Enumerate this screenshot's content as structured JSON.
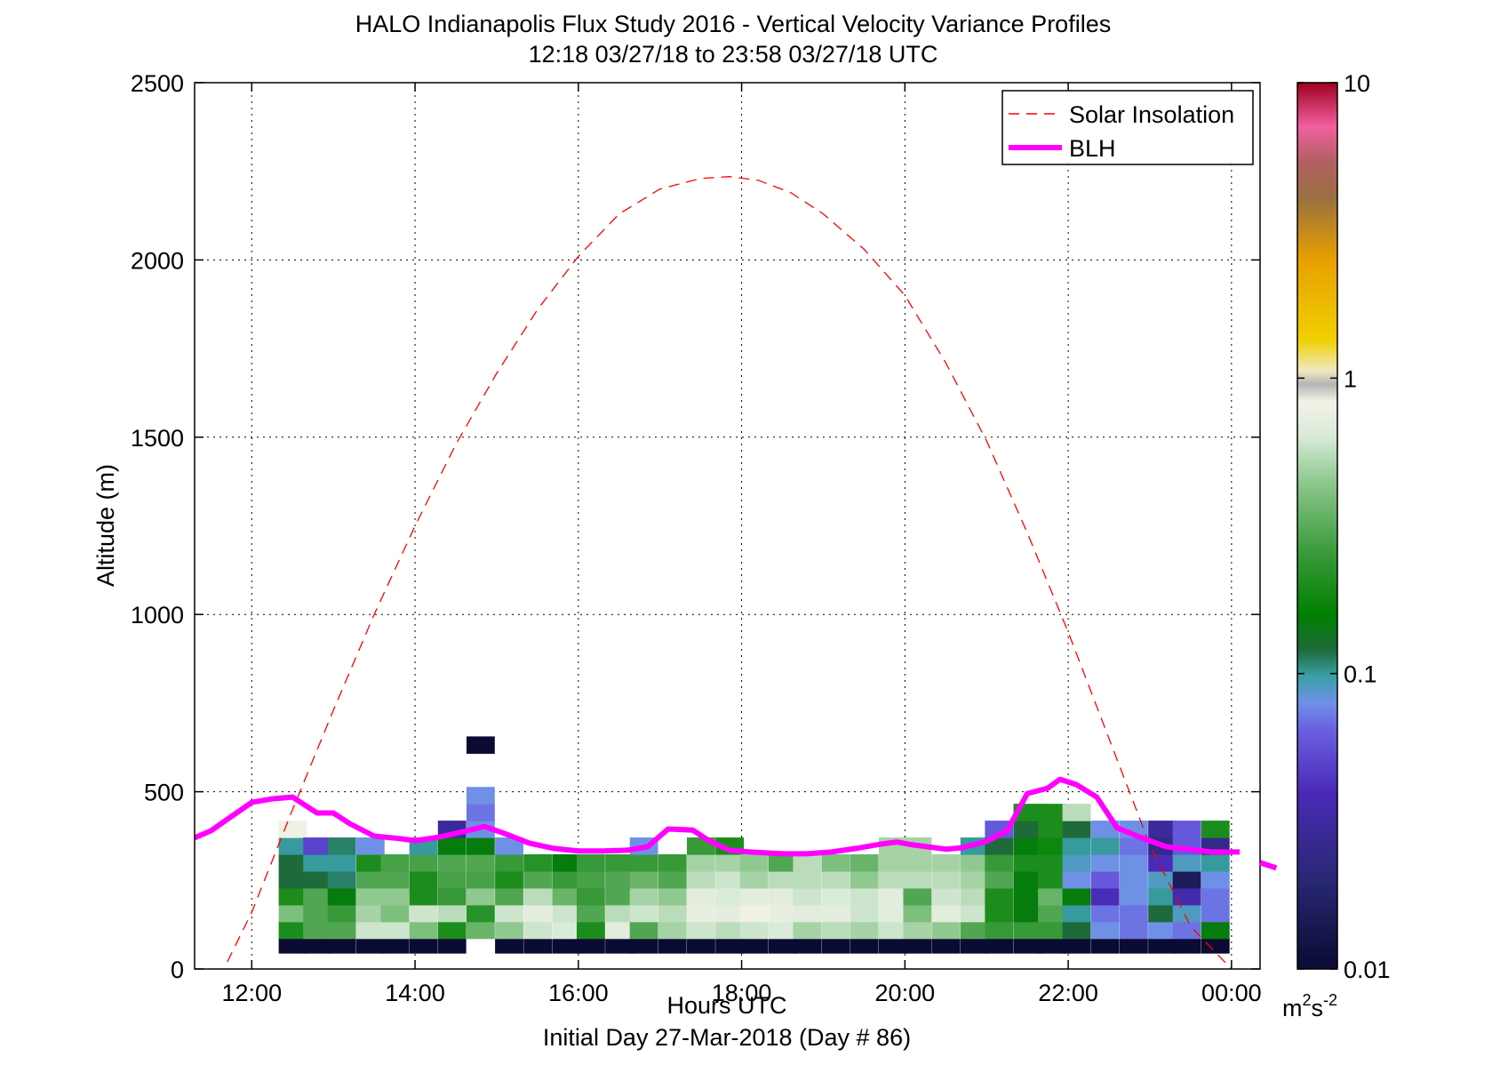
{
  "chart_data": {
    "type": "heatmap",
    "title": "HALO Indianapolis Flux Study 2016 - Vertical Velocity Variance Profiles",
    "subtitle": "12:18 03/27/18 to 23:58 03/27/18  UTC",
    "xlabel": "Hours UTC",
    "xlabel2": "Initial Day 27-Mar-2018 (Day # 86)",
    "ylabel": "Altitude (m)",
    "xlim": [
      11.3,
      24.35
    ],
    "ylim": [
      0,
      2500
    ],
    "x_ticks": [
      12,
      14,
      16,
      18,
      20,
      22,
      24
    ],
    "x_tick_labels": [
      "12:00",
      "14:00",
      "16:00",
      "18:00",
      "20:00",
      "22:00",
      "00:00"
    ],
    "y_ticks": [
      0,
      500,
      1000,
      1500,
      2000,
      2500
    ],
    "y_tick_labels": [
      "0",
      "500",
      "1000",
      "1500",
      "2000",
      "2500"
    ],
    "grid": true,
    "legend_position": "top-right",
    "legend": [
      "Solar Insolation",
      "BLH"
    ],
    "colorbar": {
      "scale": "log",
      "range": [
        0.01,
        10
      ],
      "tick_values": [
        0.01,
        0.1,
        1,
        10
      ],
      "tick_labels": [
        "0.01",
        "0.1",
        "1",
        "10"
      ],
      "unit_base": "m",
      "unit_sup1": "2",
      "unit_mid": "s",
      "unit_sup2": "-2",
      "stops": [
        [
          0.0,
          "#0a0a33"
        ],
        [
          0.1,
          "#282873"
        ],
        [
          0.2,
          "#4a2ab8"
        ],
        [
          0.27,
          "#6a60e0"
        ],
        [
          0.3,
          "#7090e8"
        ],
        [
          0.33,
          "#3aa0a8"
        ],
        [
          0.36,
          "#1e6a3a"
        ],
        [
          0.4,
          "#008000"
        ],
        [
          0.47,
          "#3a9a3a"
        ],
        [
          0.55,
          "#8ec88e"
        ],
        [
          0.6,
          "#d8ead8"
        ],
        [
          0.64,
          "#f2f2e6"
        ],
        [
          0.66,
          "#b4b4b4"
        ],
        [
          0.675,
          "#f0e8c0"
        ],
        [
          0.71,
          "#f0d000"
        ],
        [
          0.8,
          "#e8a000"
        ],
        [
          0.87,
          "#9a7040"
        ],
        [
          0.91,
          "#b06060"
        ],
        [
          0.95,
          "#f060a0"
        ],
        [
          1.0,
          "#a00020"
        ]
      ]
    },
    "series": [
      {
        "name": "Solar Insolation",
        "color": "#ff0000",
        "style": "dashed",
        "x": [
          11.7,
          12.0,
          12.5,
          13.0,
          13.5,
          14.0,
          14.5,
          15.0,
          15.5,
          16.0,
          16.5,
          17.0,
          17.5,
          17.85,
          18.2,
          18.6,
          19.0,
          19.5,
          20.0,
          20.5,
          21.0,
          21.5,
          22.0,
          22.5,
          23.0,
          23.5,
          24.0
        ],
        "y": [
          20,
          160,
          450,
          730,
          1000,
          1250,
          1480,
          1680,
          1860,
          2010,
          2130,
          2200,
          2230,
          2235,
          2225,
          2190,
          2130,
          2030,
          1900,
          1710,
          1490,
          1230,
          950,
          650,
          350,
          120,
          0
        ]
      },
      {
        "name": "BLH",
        "color": "#ff00ff",
        "style": "solid",
        "x": [
          11.3,
          11.5,
          11.75,
          12.0,
          12.25,
          12.5,
          12.8,
          13.0,
          13.2,
          13.5,
          13.8,
          14.0,
          14.3,
          14.6,
          14.85,
          15.1,
          15.4,
          15.7,
          16.0,
          16.3,
          16.6,
          16.85,
          17.1,
          17.4,
          17.6,
          17.85,
          18.1,
          18.5,
          18.8,
          19.1,
          19.4,
          19.7,
          19.9,
          20.1,
          20.5,
          20.7,
          21.0,
          21.25,
          21.5,
          21.75,
          21.9,
          22.1,
          22.35,
          22.6,
          22.9,
          23.2,
          23.5,
          23.75,
          24.0,
          24.1
        ],
        "y": [
          370,
          390,
          430,
          470,
          480,
          485,
          440,
          440,
          410,
          375,
          368,
          362,
          372,
          388,
          402,
          382,
          355,
          340,
          333,
          333,
          335,
          345,
          395,
          392,
          362,
          335,
          330,
          325,
          325,
          330,
          340,
          352,
          358,
          350,
          338,
          342,
          360,
          390,
          495,
          510,
          535,
          520,
          485,
          398,
          370,
          345,
          337,
          330,
          330,
          330
        ]
      }
    ],
    "extra_segment": {
      "x": [
        24.35,
        24.55
      ],
      "y": [
        300,
        285
      ]
    },
    "cells": [
      {
        "x": 12.5,
        "vals": [
          0.01,
          0.2,
          0.4,
          0.2,
          0.12,
          0.12,
          0.1,
          0.8
        ]
      },
      {
        "x": 12.8,
        "vals": [
          0.01,
          0.3,
          0.3,
          0.3,
          0.12,
          0.1,
          0.05
        ]
      },
      {
        "x": 13.1,
        "vals": [
          0.01,
          0.3,
          0.25,
          0.15,
          0.11,
          0.1,
          0.11
        ]
      },
      {
        "x": 13.45,
        "vals": [
          0.01,
          0.6,
          0.5,
          0.45,
          0.3,
          0.2,
          0.08
        ]
      },
      {
        "x": 13.75,
        "vals": [
          0.01,
          0.6,
          0.4,
          0.45,
          0.3,
          0.28
        ]
      },
      {
        "x": 14.1,
        "vals": [
          0.01,
          0.4,
          0.6,
          0.2,
          0.2,
          0.28,
          0.1
        ]
      },
      {
        "x": 14.45,
        "vals": [
          0.01,
          0.2,
          0.55,
          0.25,
          0.28,
          0.3,
          0.15,
          0.03
        ]
      },
      {
        "x": 14.8,
        "vals": [
          null,
          0.35,
          0.22,
          0.45,
          0.28,
          0.3,
          0.15,
          0.08,
          0.07,
          0.08,
          null,
          null,
          0.01
        ]
      },
      {
        "x": 15.15,
        "vals": [
          0.01,
          0.45,
          0.6,
          0.3,
          0.2,
          0.25,
          0.08
        ]
      },
      {
        "x": 15.5,
        "vals": [
          0.01,
          0.6,
          0.7,
          0.55,
          0.3,
          0.22
        ]
      },
      {
        "x": 15.85,
        "vals": [
          0.01,
          0.65,
          0.6,
          0.35,
          0.25,
          0.15
        ]
      },
      {
        "x": 16.15,
        "vals": [
          0.01,
          0.2,
          0.3,
          0.25,
          0.28,
          0.25
        ]
      },
      {
        "x": 16.5,
        "vals": [
          0.01,
          0.7,
          0.55,
          0.3,
          0.3,
          0.25
        ]
      },
      {
        "x": 16.8,
        "vals": [
          0.01,
          0.3,
          0.6,
          0.5,
          0.35,
          0.25,
          0.08
        ]
      },
      {
        "x": 17.15,
        "vals": [
          0.01,
          0.5,
          0.55,
          0.45,
          0.3,
          0.25
        ]
      },
      {
        "x": 17.5,
        "vals": [
          0.01,
          0.6,
          0.75,
          0.7,
          0.55,
          0.5,
          0.25
        ]
      },
      {
        "x": 17.85,
        "vals": [
          0.01,
          0.55,
          0.7,
          0.65,
          0.6,
          0.5,
          0.2
        ]
      },
      {
        "x": 18.15,
        "vals": [
          0.01,
          0.6,
          0.8,
          0.7,
          0.5,
          0.45
        ]
      },
      {
        "x": 18.5,
        "vals": [
          0.01,
          0.65,
          0.75,
          0.7,
          0.55,
          0.3
        ]
      },
      {
        "x": 18.8,
        "vals": [
          0.01,
          0.5,
          0.7,
          0.6,
          0.55,
          0.55
        ]
      },
      {
        "x": 19.15,
        "vals": [
          0.01,
          0.55,
          0.7,
          0.65,
          0.55,
          0.4
        ]
      },
      {
        "x": 19.5,
        "vals": [
          0.01,
          0.5,
          0.6,
          0.6,
          0.45,
          0.35
        ]
      },
      {
        "x": 19.85,
        "vals": [
          0.01,
          0.6,
          0.7,
          0.7,
          0.55,
          0.5,
          0.5
        ]
      },
      {
        "x": 20.15,
        "vals": [
          0.01,
          0.5,
          0.4,
          0.3,
          0.55,
          0.5,
          0.5
        ]
      },
      {
        "x": 20.5,
        "vals": [
          0.01,
          0.45,
          0.7,
          0.6,
          0.55,
          0.5
        ]
      },
      {
        "x": 20.85,
        "vals": [
          0.01,
          0.3,
          0.6,
          0.55,
          0.5,
          0.45,
          0.1
        ]
      },
      {
        "x": 21.15,
        "vals": [
          0.01,
          0.25,
          0.2,
          0.2,
          0.3,
          0.25,
          0.12,
          0.06
        ]
      },
      {
        "x": 21.5,
        "vals": [
          0.01,
          0.25,
          0.15,
          0.15,
          0.15,
          0.2,
          0.15,
          0.12,
          0.2
        ]
      },
      {
        "x": 21.8,
        "vals": [
          0.01,
          0.25,
          0.3,
          0.35,
          0.2,
          0.2,
          0.18,
          0.2,
          0.2
        ]
      },
      {
        "x": 22.1,
        "vals": [
          0.01,
          0.12,
          0.1,
          0.15,
          0.08,
          0.09,
          0.1,
          0.12,
          0.55
        ]
      },
      {
        "x": 22.45,
        "vals": [
          0.01,
          0.08,
          0.07,
          0.04,
          0.06,
          0.08,
          0.1,
          0.08
        ]
      },
      {
        "x": 22.8,
        "vals": [
          0.01,
          0.07,
          0.07,
          0.08,
          0.08,
          0.08,
          0.07,
          0.08
        ]
      },
      {
        "x": 23.15,
        "vals": [
          0.01,
          0.08,
          0.12,
          0.1,
          0.09,
          0.04,
          0.025,
          0.03
        ]
      },
      {
        "x": 23.45,
        "vals": [
          0.01,
          0.07,
          0.09,
          0.035,
          0.015,
          0.09,
          0.06,
          0.06
        ]
      },
      {
        "x": 23.8,
        "vals": [
          0.01,
          0.15,
          0.07,
          0.07,
          0.08,
          0.1,
          0.025,
          0.2
        ]
      }
    ],
    "cell_x_half_width": 0.17,
    "cell_y_height": 47.5,
    "cell_y_start": 86
  }
}
